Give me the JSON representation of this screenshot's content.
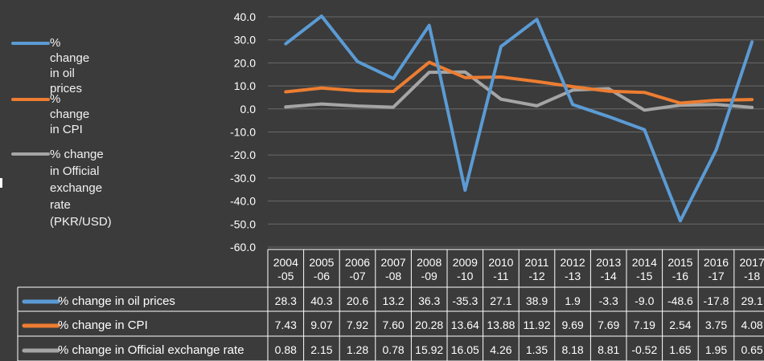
{
  "chart_data": {
    "type": "line",
    "categories": [
      "2004\n-05",
      "2005\n-06",
      "2006\n-07",
      "2007\n-08",
      "2008\n-09",
      "2009\n-10",
      "2010\n-11",
      "2011\n-12",
      "2012\n-13",
      "2013\n-14",
      "2014\n-15",
      "2015\n-16",
      "2016\n-17",
      "2017\n-18"
    ],
    "series": [
      {
        "name": "% change in oil prices",
        "color": "#5b9bd5",
        "values": [
          28.3,
          40.3,
          20.6,
          13.2,
          36.3,
          -35.3,
          27.1,
          38.9,
          1.9,
          -3.3,
          -9.0,
          -48.6,
          -17.8,
          29.1
        ],
        "labels": [
          "28.3",
          "40.3",
          "20.6",
          "13.2",
          "36.3",
          "-35.3",
          "27.1",
          "38.9",
          "1.9",
          "-3.3",
          "-9.0",
          "-48.6",
          "-17.8",
          "29.1"
        ]
      },
      {
        "name": "% change in CPI",
        "color": "#ed7d31",
        "values": [
          7.43,
          9.07,
          7.92,
          7.6,
          20.28,
          13.64,
          13.88,
          11.92,
          9.69,
          7.69,
          7.19,
          2.54,
          3.75,
          4.08
        ],
        "labels": [
          "7.43",
          "9.07",
          "7.92",
          "7.60",
          "20.28",
          "13.64",
          "13.88",
          "11.92",
          "9.69",
          "7.69",
          "7.19",
          "2.54",
          "3.75",
          "4.08"
        ]
      },
      {
        "name": "% change in Official exchange rate (PKR/USD)",
        "color": "#a5a5a5",
        "values": [
          0.88,
          2.15,
          1.28,
          0.78,
          15.92,
          16.05,
          4.26,
          1.35,
          8.18,
          8.81,
          -0.52,
          1.65,
          1.95,
          0.65
        ],
        "labels": [
          "0.88",
          "2.15",
          "1.28",
          "0.78",
          "15.92",
          "16.05",
          "4.26",
          "1.35",
          "8.18",
          "8.81",
          "-0.52",
          "1.65",
          "1.95",
          "0.65"
        ]
      }
    ],
    "legend_labels": [
      "% change in oil prices",
      "% change in CPI",
      "% change in Official\nexchange rate\n(PKR/USD)"
    ],
    "table_labels": [
      "% change in oil prices",
      "% change in CPI",
      "% change in Official exchange rate"
    ],
    "yticks": [
      "40.0",
      "30.0",
      "20.0",
      "10.0",
      "0.0",
      "-10.0",
      "-20.0",
      "-30.0",
      "-40.0",
      "-50.0",
      "-60.0"
    ],
    "ylim": [
      -60,
      40
    ],
    "grid": true,
    "legend_position": "left",
    "data_table": true
  }
}
